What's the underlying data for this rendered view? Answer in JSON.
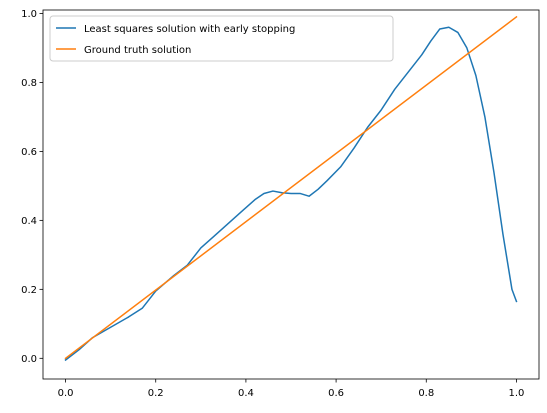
{
  "chart_data": {
    "type": "line",
    "title": "",
    "xlabel": "",
    "ylabel": "",
    "xlim": [
      -0.05,
      1.05
    ],
    "ylim": [
      -0.06,
      1.01
    ],
    "grid": false,
    "legend_position": "top-left",
    "x_ticks": [
      0.0,
      0.2,
      0.4,
      0.6,
      0.8,
      1.0
    ],
    "x_tick_labels": [
      "0.0",
      "0.2",
      "0.4",
      "0.6",
      "0.8",
      "1.0"
    ],
    "y_ticks": [
      0.0,
      0.2,
      0.4,
      0.6,
      0.8,
      1.0
    ],
    "y_tick_labels": [
      "0.0",
      "0.2",
      "0.4",
      "0.6",
      "0.8",
      "1.0"
    ],
    "series": [
      {
        "name": "Least squares solution with early stopping",
        "color": "#1f77b4",
        "x": [
          0.0,
          0.03,
          0.06,
          0.1,
          0.14,
          0.17,
          0.2,
          0.24,
          0.27,
          0.3,
          0.33,
          0.36,
          0.39,
          0.42,
          0.44,
          0.46,
          0.48,
          0.5,
          0.52,
          0.54,
          0.56,
          0.58,
          0.61,
          0.64,
          0.67,
          0.7,
          0.73,
          0.76,
          0.79,
          0.81,
          0.83,
          0.85,
          0.87,
          0.89,
          0.91,
          0.93,
          0.95,
          0.97,
          0.99,
          1.0
        ],
        "y": [
          -0.005,
          0.025,
          0.06,
          0.09,
          0.12,
          0.145,
          0.195,
          0.24,
          0.27,
          0.32,
          0.355,
          0.39,
          0.425,
          0.46,
          0.478,
          0.485,
          0.48,
          0.478,
          0.478,
          0.47,
          0.49,
          0.515,
          0.555,
          0.61,
          0.67,
          0.72,
          0.78,
          0.83,
          0.88,
          0.92,
          0.955,
          0.96,
          0.945,
          0.9,
          0.82,
          0.7,
          0.54,
          0.36,
          0.2,
          0.165
        ]
      },
      {
        "name": "Ground truth solution",
        "color": "#ff7f0e",
        "x": [
          0.0,
          1.0
        ],
        "y": [
          0.0,
          0.99
        ]
      }
    ]
  }
}
